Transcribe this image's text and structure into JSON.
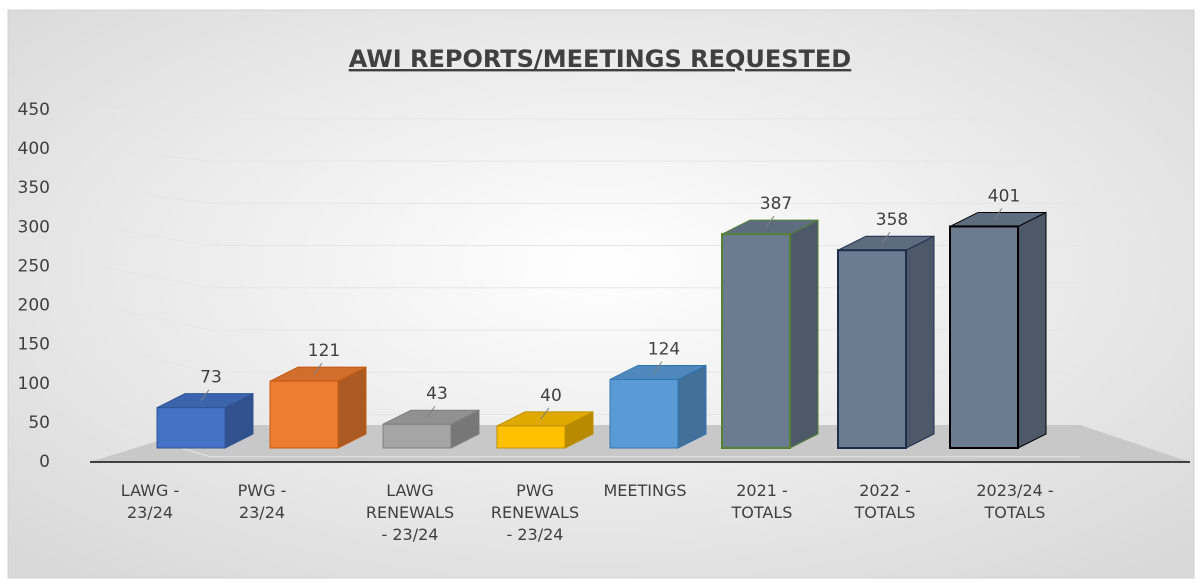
{
  "chart_data": {
    "type": "bar3d",
    "title": "AWI REPORTS/MEETINGS REQUESTED",
    "categories": [
      "LAWG -\n23/24",
      "PWG -\n23/24",
      "LAWG\nRENEWALS\n- 23/24",
      "PWG\nRENEWALS\n- 23/24",
      "MEETINGS",
      "2021 -\nTOTALS",
      "2022 -\nTOTALS",
      "2023/24 -\nTOTALS"
    ],
    "values": [
      73,
      121,
      43,
      40,
      124,
      387,
      358,
      401
    ],
    "colors": [
      "#4472c4",
      "#ed7d31",
      "#a5a5a5",
      "#ffc000",
      "#5b9bd5",
      "#6b7b90",
      "#6b7b90",
      "#6b7b90"
    ],
    "edgecolors": [
      "#2f5597",
      "#c55a11",
      "#7f7f7f",
      "#bf9000",
      "#2e75b6",
      "#548235",
      "#1f2d4d",
      "#000000"
    ],
    "ylim": [
      0,
      450
    ],
    "yticks": [
      0,
      50,
      100,
      150,
      200,
      250,
      300,
      350,
      400,
      450
    ],
    "grid": true
  }
}
